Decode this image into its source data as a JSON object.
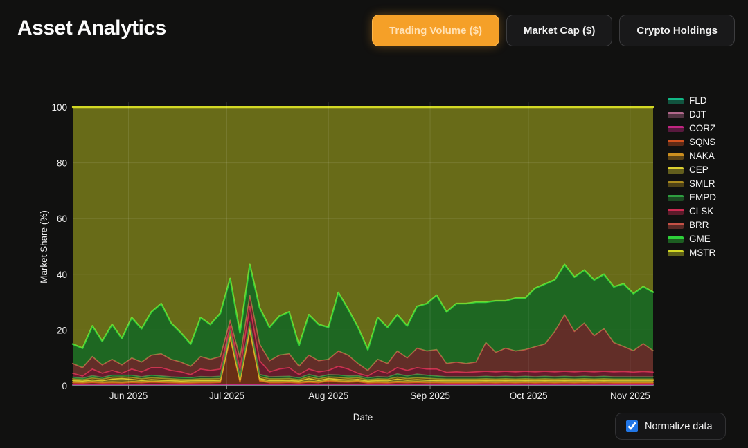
{
  "header": {
    "title": "Asset Analytics"
  },
  "toolbar": {
    "buttons": [
      {
        "label": "Trading Volume ($)",
        "active": true
      },
      {
        "label": "Market Cap ($)",
        "active": false
      },
      {
        "label": "Crypto Holdings",
        "active": false
      }
    ],
    "active_color": "#f5a028"
  },
  "controls": {
    "normalize_label": "Normalize data",
    "checked": true,
    "checkbox_color": "#2176e6"
  },
  "chart_data": {
    "type": "area",
    "stacked": true,
    "normalized_to_100": true,
    "xlabel": "Date",
    "ylabel": "Market Share (%)",
    "ylim": [
      0,
      100
    ],
    "yticks": [
      0,
      20,
      40,
      60,
      80,
      100
    ],
    "grid": true,
    "legend_position": "right",
    "x_range": {
      "start": "2025-05-15",
      "end": "2025-11-08",
      "total_days": 177,
      "point_step_days": 3
    },
    "x_ticks": [
      {
        "label": "Jun 2025",
        "day": 17
      },
      {
        "label": "Jul 2025",
        "day": 47
      },
      {
        "label": "Aug 2025",
        "day": 78
      },
      {
        "label": "Sep 2025",
        "day": 109
      },
      {
        "label": "Oct 2025",
        "day": 139
      },
      {
        "label": "Nov 2025",
        "day": 170
      }
    ],
    "series_note": "values are % market share per point (every 3 days); stacking order bottom-to-top as listed; constant series given as single-value arrays",
    "series": [
      {
        "name": "FLD",
        "line": "#12b886",
        "values": [
          0.15
        ]
      },
      {
        "name": "DJT",
        "line": "#b2688c",
        "values": [
          0.15
        ]
      },
      {
        "name": "CORZ",
        "line": "#c22582",
        "values": [
          0.2
        ]
      },
      {
        "name": "SQNS",
        "line": "#d2511f",
        "values": [
          0.6,
          0.5,
          0.7,
          0.5,
          0.6,
          0.5,
          0.7,
          0.6,
          0.8,
          0.7,
          0.6,
          0.5,
          0.5,
          0.6,
          0.6,
          0.7,
          16.5,
          0.8,
          19,
          1.2,
          0.6,
          0.6,
          0.7,
          0.5,
          0.8,
          0.6,
          1.2,
          0.9,
          0.8,
          1,
          0.5,
          0.6,
          0.5,
          0.7,
          0.6,
          0.7,
          0.6,
          0.6,
          0.5,
          0.5,
          0.5,
          0.5,
          0.6,
          0.5,
          0.6,
          0.5,
          0.6,
          0.5,
          0.6,
          0.5,
          0.6,
          0.5,
          0.6,
          0.5,
          0.6,
          0.5,
          0.5,
          0.5,
          0.5,
          0.5
        ]
      },
      {
        "name": "NAKA",
        "line": "#cc8f1f",
        "values": [
          0.3
        ]
      },
      {
        "name": "CEP",
        "line": "#ddd131",
        "values": [
          0.5,
          0.4,
          0.6,
          0.5,
          1,
          1.3,
          0.8,
          0.5,
          0.6,
          0.5,
          0.5,
          0.4,
          0.5,
          0.5,
          0.5,
          0.5,
          0.9,
          0.5,
          1,
          0.6,
          0.5,
          0.5,
          0.5,
          0.4,
          1,
          0.5,
          0.6,
          0.6,
          0.5,
          0.5,
          0.4,
          0.5,
          0.5,
          0.9,
          0.6,
          0.7,
          0.6,
          0.5,
          0.5,
          0.5,
          0.5,
          0.5,
          0.5,
          0.5,
          0.5,
          0.5,
          0.5,
          0.5,
          0.5,
          0.5,
          0.5,
          0.5,
          0.5,
          0.5,
          0.5,
          0.5,
          0.5,
          0.5,
          0.5,
          0.5
        ]
      },
      {
        "name": "SMLR",
        "line": "#ab8b1e",
        "values": [
          0.6,
          0.5,
          0.7,
          0.6,
          0.7,
          0.6,
          0.7,
          0.6,
          0.7,
          0.7,
          0.6,
          0.6,
          0.5,
          0.6,
          0.6,
          0.6,
          0.8,
          0.6,
          0.9,
          0.7,
          0.6,
          0.6,
          0.6,
          0.5,
          0.7,
          0.6,
          0.6,
          0.7,
          0.6,
          0.6,
          0.5,
          0.6,
          0.6,
          0.7,
          0.6,
          0.7,
          0.7,
          0.6,
          0.6,
          0.6,
          0.6,
          0.6,
          0.6,
          0.6,
          0.6,
          0.6,
          0.6,
          0.6,
          0.6,
          0.6,
          0.6,
          0.6,
          0.6,
          0.6,
          0.6,
          0.6,
          0.6,
          0.6,
          0.6,
          0.6
        ]
      },
      {
        "name": "EMPD",
        "line": "#2e9e40",
        "values": [
          0.6,
          0.5,
          0.8,
          0.6,
          0.7,
          0.6,
          0.8,
          0.7,
          0.9,
          0.8,
          0.7,
          0.7,
          0.6,
          0.8,
          0.7,
          0.8,
          1,
          0.7,
          1.1,
          0.8,
          0.7,
          0.8,
          0.8,
          0.6,
          0.8,
          0.7,
          0.8,
          0.9,
          0.8,
          0.7,
          0.6,
          0.8,
          0.7,
          1.2,
          0.9,
          1.3,
          1.1,
          1,
          0.8,
          0.8,
          0.8,
          0.8,
          0.9,
          0.8,
          0.9,
          0.8,
          0.9,
          0.8,
          0.9,
          0.8,
          0.9,
          0.8,
          0.9,
          0.8,
          0.9,
          0.8,
          0.8,
          0.8,
          0.8,
          0.8
        ]
      },
      {
        "name": "CLSK",
        "line": "#cc2a52",
        "values": [
          1.4,
          0.8,
          2.4,
          1.5,
          1.7,
          0.7,
          2.2,
          1.8,
          2.7,
          3,
          2.3,
          2,
          1.1,
          2.7,
          2.3,
          2.6,
          1.5,
          2.6,
          5.7,
          4.9,
          1.8,
          2.7,
          3.1,
          1.2,
          1.9,
          1.8,
          1.5,
          3.1,
          2.5,
          0.9,
          0.7,
          2.2,
          1.4,
          2.2,
          2,
          2.3,
          2.2,
          2.5,
          1.6,
          1.8,
          1.6,
          1.8,
          1.8,
          1.8,
          1.8,
          1.8,
          1.8,
          1.8,
          1.8,
          1.8,
          1.8,
          1.8,
          1.8,
          1.8,
          1.8,
          1.8,
          1.9,
          1.7,
          1.9,
          1.7
        ]
      },
      {
        "name": "BRR",
        "line": "#c65146",
        "values": [
          3.5,
          3,
          4.5,
          3,
          4,
          3,
          4,
          3.5,
          4.5,
          5,
          4,
          3.5,
          3,
          4.5,
          4,
          4.5,
          2,
          4,
          4,
          6,
          4,
          5,
          5,
          3,
          5,
          4,
          4,
          5.5,
          5,
          3.5,
          2,
          4,
          3.5,
          6,
          4.5,
          7,
          6.5,
          7,
          3.2,
          3.5,
          3.2,
          3.5,
          10.3,
          7,
          8.3,
          7.5,
          7.8,
          9,
          9.8,
          14.5,
          20.3,
          14.5,
          17.3,
          13,
          15.3,
          10.5,
          9,
          7.7,
          10,
          7.7
        ]
      },
      {
        "name": "GME",
        "line": "#2ed13a",
        "values": [
          7,
          7,
          11,
          8.5,
          12.5,
          9.5,
          14.5,
          12,
          15.5,
          18,
          13,
          10.5,
          8,
          14,
          12.5,
          15.5,
          15,
          9,
          11,
          13,
          12,
          14,
          15,
          7.5,
          14.5,
          13,
          11.5,
          21,
          16.5,
          13,
          7.5,
          15,
          13,
          13,
          11.5,
          15,
          17,
          19.5,
          18.5,
          21,
          21.5,
          21.5,
          14.5,
          18.5,
          17,
          19,
          18.5,
          21,
          21.5,
          18.5,
          18,
          19.5,
          19,
          20,
          19.5,
          20,
          22.5,
          20.5,
          20.5,
          21
        ]
      },
      {
        "name": "MSTR",
        "line": "#d3d924",
        "values": [
          85,
          86.5,
          78.5,
          84,
          78,
          83,
          75.5,
          79.5,
          73.5,
          70.5,
          77.5,
          81,
          85,
          75.5,
          78,
          74,
          61.5,
          81,
          56.5,
          72,
          79,
          75,
          73.5,
          85.5,
          74.5,
          78,
          79,
          66.5,
          72.5,
          79,
          87,
          75.5,
          79,
          74.5,
          78.5,
          71.5,
          70.5,
          67.5,
          73.5,
          70.5,
          70.5,
          70,
          70,
          69.5,
          69.5,
          68.5,
          68.5,
          65,
          63.5,
          62,
          56.5,
          61,
          58.5,
          62,
          60,
          64.5,
          63.5,
          67,
          64.5,
          66.4
        ]
      }
    ]
  }
}
